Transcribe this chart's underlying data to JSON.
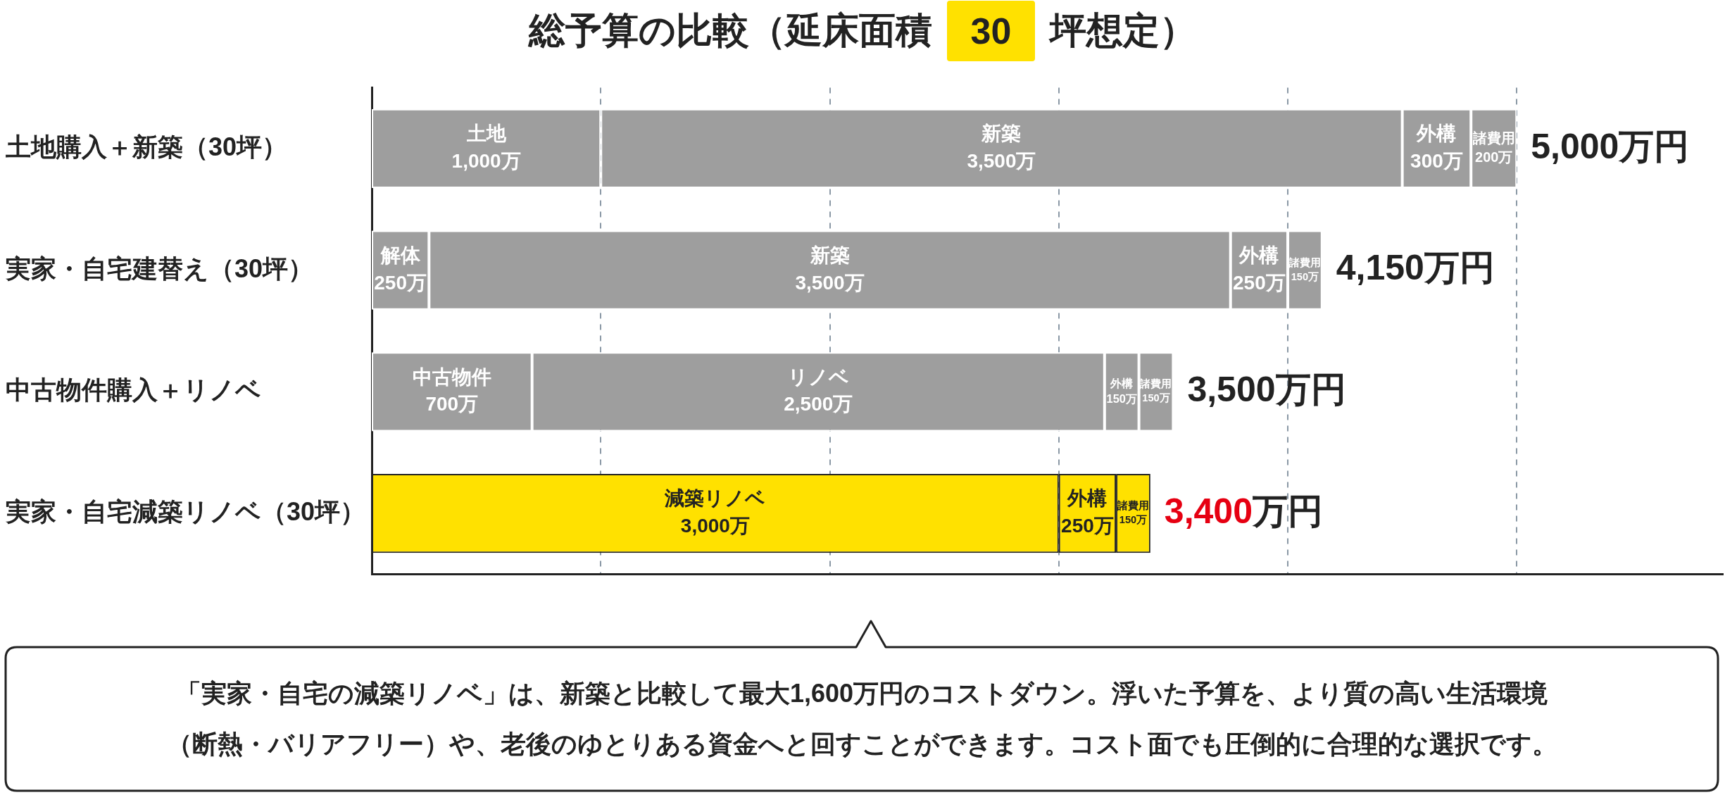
{
  "chart_data": {
    "type": "bar",
    "orientation": "horizontal",
    "stacked": true,
    "title": "総予算の比較（延床面積 30 坪想定）",
    "categories": [
      "土地購入＋新築（30坪）",
      "実家・自宅建替え（30坪）",
      "中古物件購入＋リノベ",
      "実家・自宅減築リノベ（30坪）"
    ],
    "series": [
      {
        "name": "土地",
        "color": "#9e9e9e",
        "values": [
          1000,
          null,
          null,
          null
        ],
        "value_labels": [
          "1,000万",
          null,
          null,
          null
        ]
      },
      {
        "name": "解体",
        "color": "#9e9e9e",
        "values": [
          null,
          250,
          null,
          null
        ],
        "value_labels": [
          null,
          "250万",
          null,
          null
        ]
      },
      {
        "name": "中古物件",
        "color": "#9e9e9e",
        "values": [
          null,
          null,
          700,
          null
        ],
        "value_labels": [
          null,
          null,
          "700万",
          null
        ]
      },
      {
        "name": "新築",
        "color": "#9e9e9e",
        "values": [
          3500,
          3500,
          null,
          null
        ],
        "value_labels": [
          "3,500万",
          "3,500万",
          null,
          null
        ]
      },
      {
        "name": "リノベ",
        "color": "#9e9e9e",
        "values": [
          null,
          null,
          2500,
          null
        ],
        "value_labels": [
          null,
          null,
          "2,500万",
          null
        ]
      },
      {
        "name": "減築リノベ",
        "color": "#ffe100",
        "values": [
          null,
          null,
          null,
          3000
        ],
        "value_labels": [
          null,
          null,
          null,
          "3,000万"
        ]
      },
      {
        "name": "外構",
        "colors": [
          "#9e9e9e",
          "#9e9e9e",
          "#9e9e9e",
          "#ffe100"
        ],
        "values": [
          300,
          250,
          150,
          250
        ],
        "value_labels": [
          "300万",
          "250万",
          "150万",
          "250万"
        ]
      },
      {
        "name": "諸費用",
        "colors": [
          "#9e9e9e",
          "#9e9e9e",
          "#9e9e9e",
          "#ffe100"
        ],
        "values": [
          200,
          150,
          150,
          150
        ],
        "value_labels": [
          "200万",
          "150万",
          "150万",
          "150万"
        ]
      }
    ],
    "totals": [
      "5,000万円",
      "4,150万円",
      "3,500万円",
      "3,400万円"
    ],
    "xlim": [
      0,
      5900
    ],
    "xticks": [
      {
        "value": 1000,
        "label": null
      },
      {
        "value": 2000,
        "label": null
      },
      {
        "value": 3000,
        "label": null
      },
      {
        "value": 4000,
        "label": null
      },
      {
        "value": 5000,
        "label": null
      }
    ],
    "grid": "x",
    "tick_labels": "y",
    "annotations": [
      "「実家・自宅の減築リノベ」は、新築と比較して最大1,600万円のコストダウン。浮いた予算を、より質の高い生活環境（断熱・バリアフリー）や、老後のゆとりある資金へと回すことができます。コスト面でも圧倒的に合理的な選択です。"
    ]
  }
}
